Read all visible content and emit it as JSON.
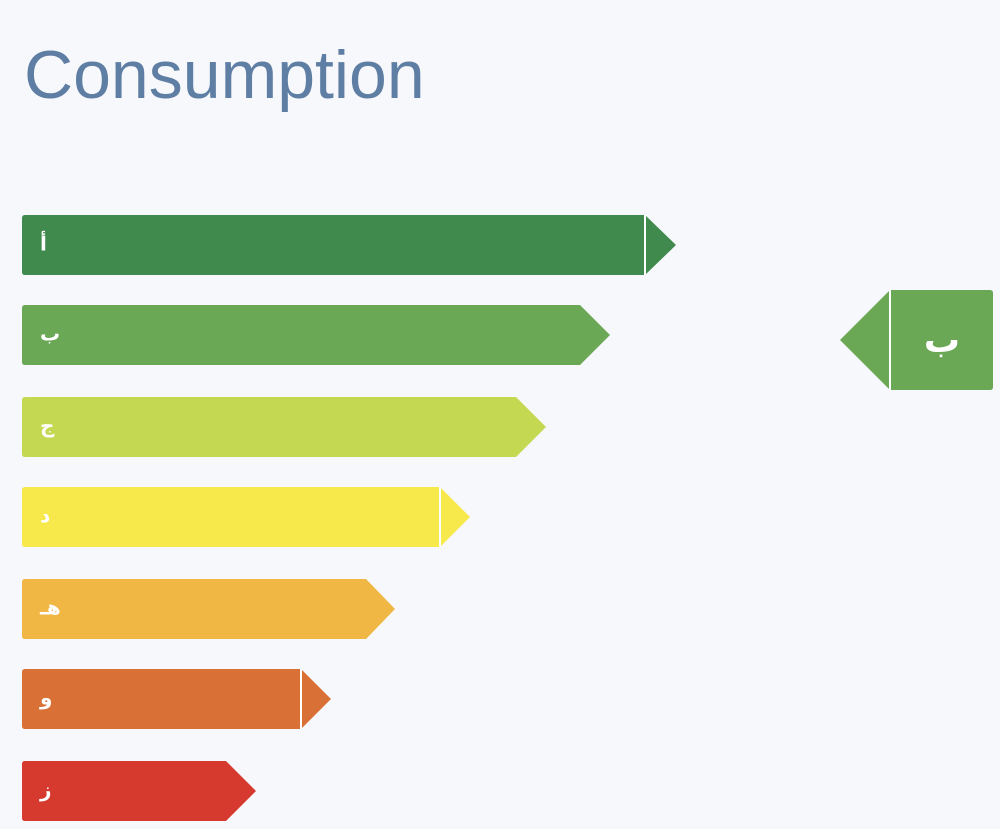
{
  "title": "Consumption",
  "ratings": [
    {
      "label": "أ"
    },
    {
      "label": "ب"
    },
    {
      "label": "ج"
    },
    {
      "label": "د"
    },
    {
      "label": "هـ"
    },
    {
      "label": "و"
    },
    {
      "label": "ز"
    }
  ],
  "current": {
    "label": "ب"
  }
}
